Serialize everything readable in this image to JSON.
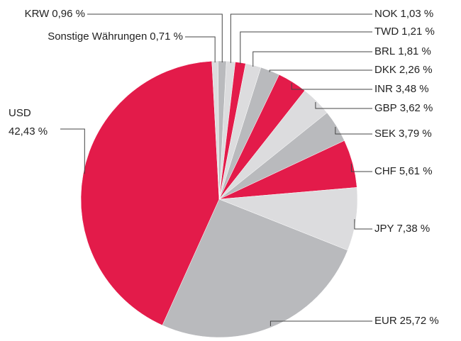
{
  "chart_data": {
    "type": "pie",
    "categories": [
      "NOK",
      "TWD",
      "BRL",
      "DKK",
      "INR",
      "GBP",
      "SEK",
      "CHF",
      "JPY",
      "EUR",
      "USD",
      "Sonstige Währungen",
      "KRW"
    ],
    "values": [
      1.03,
      1.21,
      1.81,
      2.26,
      3.48,
      3.62,
      3.79,
      5.61,
      7.38,
      25.72,
      42.43,
      0.71,
      0.96
    ],
    "value_labels": [
      "1,03 %",
      "1,21 %",
      "1,81 %",
      "2,26 %",
      "3,48 %",
      "3,62 %",
      "3,79 %",
      "5,61 %",
      "7,38 %",
      "25,72 %",
      "42,43 %",
      "0,71 %",
      "0,96 %"
    ],
    "colors": [
      "#dcdcde",
      "#e31b4a",
      "#dcdcde",
      "#b9babd",
      "#e31b4a",
      "#dcdcde",
      "#b9babd",
      "#e31b4a",
      "#dcdcde",
      "#b9babd",
      "#e31b4a",
      "#dcdcde",
      "#b9babd"
    ]
  }
}
